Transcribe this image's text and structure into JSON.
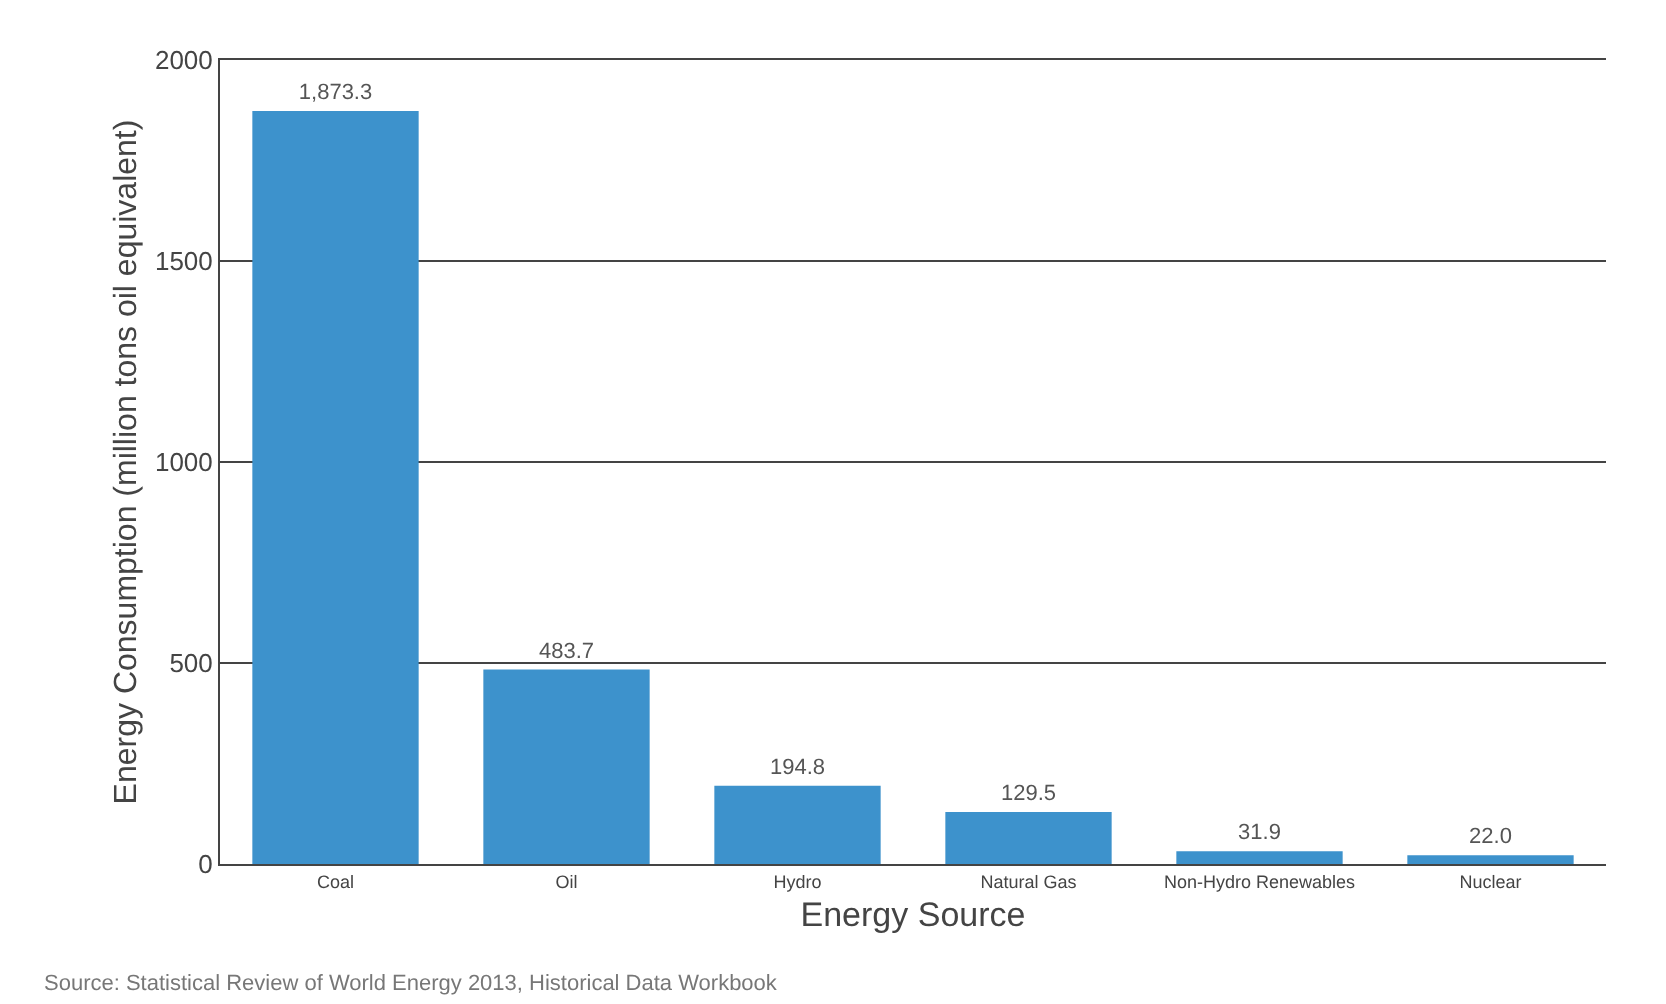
{
  "chart_data": {
    "type": "bar",
    "categories": [
      "Coal",
      "Oil",
      "Hydro",
      "Natural Gas",
      "Non-Hydro Renewables",
      "Nuclear"
    ],
    "values": [
      1873.3,
      483.7,
      194.8,
      129.5,
      31.9,
      22.0
    ],
    "value_labels": [
      "1,873.3",
      "483.7",
      "194.8",
      "129.5",
      "31.9",
      "22.0"
    ],
    "color": "#3d92cc",
    "xlabel": "Energy Source",
    "ylabel": "Energy Consumption (million tons oil equivalent)",
    "ylim": [
      0,
      2000
    ],
    "yticks": [
      0,
      500,
      1000,
      1500,
      2000
    ],
    "grid": "y",
    "legend": false,
    "annotations": [
      "Source: Statistical Review of World Energy 2013, Historical Data Workbook"
    ]
  }
}
